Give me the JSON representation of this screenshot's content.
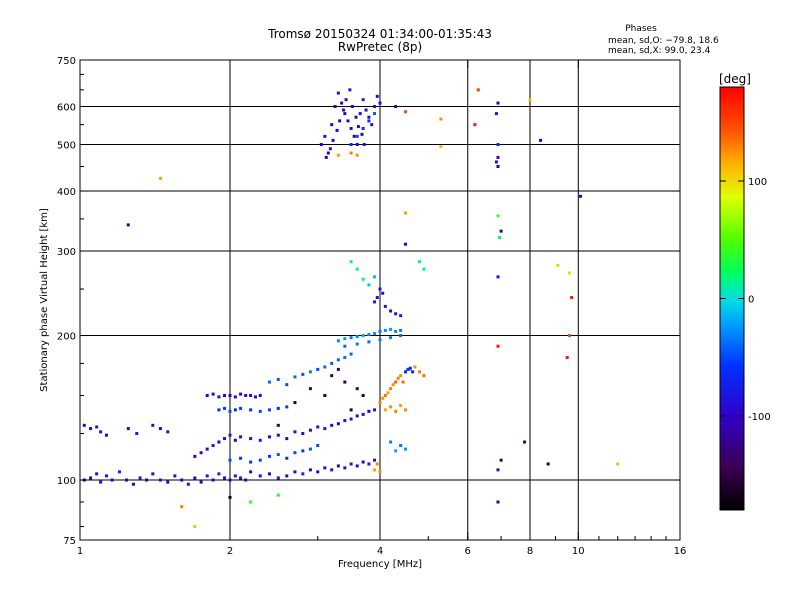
{
  "title_line1": "Tromsø 20150324 01:34:00-01:35:43",
  "title_line2": "RwPretec (8p)",
  "stats": {
    "heading": "Phases",
    "line_o": "mean, sd,O: −79.8, 18.6",
    "line_x": "mean, sd,X:  99.0, 23.4"
  },
  "colorbar": {
    "label": "[deg]",
    "ticks": [
      {
        "value": 100,
        "label": "100"
      },
      {
        "value": 0,
        "label": "0"
      },
      {
        "value": -100,
        "label": "-100"
      }
    ],
    "range": [
      -180,
      180
    ]
  },
  "chart_data": {
    "type": "scatter",
    "xlabel": "Frequency [MHz]",
    "ylabel": "Stationary phase Virtual Height [km]",
    "xscale": "log",
    "yscale": "log",
    "xlim": [
      1,
      16
    ],
    "ylim": [
      75,
      750
    ],
    "x_ticks": [
      {
        "value": 1,
        "label": "1"
      },
      {
        "value": 2,
        "label": "2"
      },
      {
        "value": 4,
        "label": "4"
      },
      {
        "value": 6,
        "label": "6"
      },
      {
        "value": 8,
        "label": "8"
      },
      {
        "value": 10,
        "label": "10"
      },
      {
        "value": 16,
        "label": "16"
      }
    ],
    "x_grid": [
      2,
      4,
      6,
      8,
      10
    ],
    "y_ticks": [
      {
        "value": 75,
        "label": "75"
      },
      {
        "value": 100,
        "label": "100"
      },
      {
        "value": 200,
        "label": "200"
      },
      {
        "value": 300,
        "label": "300"
      },
      {
        "value": 400,
        "label": "400"
      },
      {
        "value": 500,
        "label": "500"
      },
      {
        "value": 600,
        "label": "600"
      },
      {
        "value": 750,
        "label": "750"
      }
    ],
    "y_grid": [
      100,
      200,
      300,
      400,
      500,
      600
    ],
    "color_key": "phase_deg",
    "points": [
      [
        1.02,
        100,
        -95
      ],
      [
        1.05,
        101,
        -100
      ],
      [
        1.08,
        103,
        -90
      ],
      [
        1.1,
        99,
        -85
      ],
      [
        1.13,
        102,
        -75
      ],
      [
        1.16,
        100,
        -100
      ],
      [
        1.2,
        104,
        -70
      ],
      [
        1.24,
        100,
        -110
      ],
      [
        1.28,
        98,
        -95
      ],
      [
        1.32,
        101,
        -80
      ],
      [
        1.36,
        100,
        -100
      ],
      [
        1.4,
        103,
        -90
      ],
      [
        1.45,
        100,
        -85
      ],
      [
        1.5,
        99,
        -105
      ],
      [
        1.55,
        102,
        -95
      ],
      [
        1.6,
        100,
        -100
      ],
      [
        1.65,
        98,
        -80
      ],
      [
        1.7,
        101,
        -90
      ],
      [
        1.75,
        99,
        -100
      ],
      [
        1.8,
        102,
        -85
      ],
      [
        1.85,
        100,
        -95
      ],
      [
        1.9,
        103,
        -70
      ],
      [
        1.95,
        101,
        -90
      ],
      [
        2.0,
        100,
        -100
      ],
      [
        2.05,
        102,
        -85
      ],
      [
        2.1,
        101,
        -80
      ],
      [
        2.15,
        100,
        -95
      ],
      [
        2.2,
        104,
        -110
      ],
      [
        2.3,
        102,
        -90
      ],
      [
        2.4,
        103,
        -100
      ],
      [
        2.5,
        101,
        -85
      ],
      [
        2.6,
        102,
        -95
      ],
      [
        2.7,
        104,
        -90
      ],
      [
        2.8,
        103,
        -80
      ],
      [
        2.9,
        105,
        -100
      ],
      [
        3.0,
        104,
        -90
      ],
      [
        3.1,
        106,
        -85
      ],
      [
        3.2,
        105,
        -95
      ],
      [
        3.3,
        107,
        -100
      ],
      [
        3.4,
        106,
        -90
      ],
      [
        3.5,
        108,
        -80
      ],
      [
        3.6,
        107,
        -95
      ],
      [
        3.7,
        109,
        -100
      ],
      [
        3.8,
        108,
        -90
      ],
      [
        3.9,
        110,
        -85
      ],
      [
        1.02,
        130,
        -95
      ],
      [
        1.05,
        128,
        -100
      ],
      [
        1.08,
        129,
        -85
      ],
      [
        1.1,
        126,
        -90
      ],
      [
        1.13,
        124,
        -100
      ],
      [
        1.25,
        128,
        -95
      ],
      [
        1.3,
        125,
        -80
      ],
      [
        1.4,
        130,
        -90
      ],
      [
        1.45,
        128,
        -100
      ],
      [
        1.5,
        126,
        -85
      ],
      [
        1.7,
        112,
        -95
      ],
      [
        1.75,
        114,
        -90
      ],
      [
        1.8,
        116,
        -100
      ],
      [
        1.85,
        118,
        -85
      ],
      [
        1.9,
        120,
        -95
      ],
      [
        1.95,
        122,
        -90
      ],
      [
        2.0,
        124,
        -80
      ],
      [
        2.05,
        121,
        -100
      ],
      [
        2.1,
        123,
        -95
      ],
      [
        2.2,
        122,
        -90
      ],
      [
        2.3,
        121,
        -85
      ],
      [
        2.4,
        123,
        -100
      ],
      [
        2.5,
        124,
        -95
      ],
      [
        2.6,
        122,
        -90
      ],
      [
        2.7,
        126,
        -85
      ],
      [
        2.8,
        125,
        -100
      ],
      [
        2.9,
        127,
        -95
      ],
      [
        3.0,
        129,
        -90
      ],
      [
        3.1,
        128,
        -80
      ],
      [
        3.2,
        130,
        -95
      ],
      [
        3.3,
        131,
        -100
      ],
      [
        3.4,
        133,
        -90
      ],
      [
        3.5,
        134,
        -85
      ],
      [
        3.6,
        136,
        -95
      ],
      [
        3.7,
        137,
        -90
      ],
      [
        3.8,
        139,
        -100
      ],
      [
        3.9,
        140,
        -85
      ],
      [
        1.8,
        150,
        -100
      ],
      [
        1.85,
        151,
        -95
      ],
      [
        1.9,
        149,
        -90
      ],
      [
        1.95,
        150,
        -105
      ],
      [
        2.0,
        150,
        -100
      ],
      [
        2.05,
        149,
        -95
      ],
      [
        2.1,
        151,
        -90
      ],
      [
        2.15,
        150,
        -85
      ],
      [
        2.2,
        150,
        -100
      ],
      [
        2.25,
        149,
        -95
      ],
      [
        2.3,
        150,
        -90
      ],
      [
        1.9,
        140,
        -60
      ],
      [
        1.95,
        141,
        -55
      ],
      [
        2.0,
        139,
        -50
      ],
      [
        2.05,
        140,
        -65
      ],
      [
        2.1,
        141,
        -55
      ],
      [
        2.2,
        140,
        -60
      ],
      [
        2.3,
        139,
        -50
      ],
      [
        2.4,
        140,
        -55
      ],
      [
        2.5,
        141,
        -65
      ],
      [
        2.6,
        142,
        -55
      ],
      [
        2.0,
        110,
        -50
      ],
      [
        2.1,
        111,
        -55
      ],
      [
        2.2,
        109,
        -60
      ],
      [
        2.3,
        110,
        -50
      ],
      [
        2.4,
        112,
        -55
      ],
      [
        2.5,
        113,
        -45
      ],
      [
        2.6,
        111,
        -60
      ],
      [
        2.7,
        114,
        -50
      ],
      [
        2.8,
        115,
        -55
      ],
      [
        2.9,
        116,
        -45
      ],
      [
        3.0,
        118,
        -50
      ],
      [
        2.4,
        160,
        -40
      ],
      [
        2.5,
        162,
        -45
      ],
      [
        2.6,
        158,
        -50
      ],
      [
        2.7,
        164,
        -40
      ],
      [
        2.8,
        166,
        -45
      ],
      [
        2.9,
        168,
        -35
      ],
      [
        3.0,
        170,
        -50
      ],
      [
        3.1,
        172,
        -40
      ],
      [
        3.2,
        175,
        -45
      ],
      [
        3.3,
        178,
        -40
      ],
      [
        3.4,
        180,
        -35
      ],
      [
        3.5,
        183,
        -40
      ],
      [
        2.5,
        130,
        -150
      ],
      [
        2.7,
        145,
        -160
      ],
      [
        2.9,
        155,
        -140
      ],
      [
        3.1,
        150,
        -155
      ],
      [
        3.2,
        165,
        -150
      ],
      [
        3.3,
        170,
        -145
      ],
      [
        3.4,
        160,
        -150
      ],
      [
        3.5,
        140,
        -160
      ],
      [
        3.6,
        155,
        -145
      ],
      [
        3.7,
        150,
        -155
      ],
      [
        3.3,
        195,
        -30
      ],
      [
        3.4,
        197,
        -25
      ],
      [
        3.5,
        198,
        -35
      ],
      [
        3.6,
        199,
        -30
      ],
      [
        3.7,
        200,
        -20
      ],
      [
        3.8,
        201,
        -30
      ],
      [
        3.9,
        202,
        -25
      ],
      [
        4.0,
        204,
        -35
      ],
      [
        4.1,
        205,
        -30
      ],
      [
        4.2,
        206,
        -25
      ],
      [
        4.3,
        204,
        -30
      ],
      [
        4.4,
        205,
        -35
      ],
      [
        3.4,
        190,
        -40
      ],
      [
        3.6,
        192,
        -35
      ],
      [
        3.8,
        194,
        -40
      ],
      [
        4.0,
        196,
        -35
      ],
      [
        4.2,
        198,
        -30
      ],
      [
        4.4,
        200,
        -40
      ],
      [
        4.0,
        145,
        130
      ],
      [
        4.05,
        148,
        125
      ],
      [
        4.1,
        150,
        135
      ],
      [
        4.15,
        152,
        120
      ],
      [
        4.2,
        155,
        130
      ],
      [
        4.25,
        158,
        125
      ],
      [
        4.3,
        160,
        140
      ],
      [
        4.35,
        163,
        130
      ],
      [
        4.4,
        165,
        125
      ],
      [
        4.45,
        160,
        135
      ],
      [
        4.5,
        168,
        130
      ],
      [
        4.6,
        170,
        120
      ],
      [
        4.7,
        172,
        125
      ],
      [
        4.8,
        168,
        130
      ],
      [
        4.9,
        165,
        135
      ],
      [
        4.1,
        140,
        120
      ],
      [
        4.2,
        142,
        125
      ],
      [
        4.3,
        139,
        130
      ],
      [
        4.4,
        143,
        120
      ],
      [
        4.5,
        140,
        125
      ],
      [
        3.9,
        105,
        120
      ],
      [
        4.0,
        104,
        125
      ],
      [
        3.95,
        108,
        130
      ],
      [
        3.9,
        235,
        -80
      ],
      [
        3.95,
        240,
        -90
      ],
      [
        4.0,
        250,
        -85
      ],
      [
        4.05,
        245,
        -95
      ],
      [
        4.1,
        230,
        -80
      ],
      [
        4.2,
        225,
        -90
      ],
      [
        4.3,
        222,
        -85
      ],
      [
        4.4,
        220,
        -80
      ],
      [
        3.5,
        285,
        10
      ],
      [
        3.6,
        275,
        15
      ],
      [
        3.7,
        262,
        20
      ],
      [
        3.8,
        255,
        -10
      ],
      [
        3.9,
        265,
        -15
      ],
      [
        4.5,
        168,
        -60
      ],
      [
        4.55,
        170,
        -55
      ],
      [
        4.6,
        171,
        -65
      ],
      [
        4.65,
        168,
        -60
      ],
      [
        4.2,
        120,
        -30
      ],
      [
        4.3,
        115,
        -20
      ],
      [
        4.4,
        118,
        -35
      ],
      [
        4.5,
        116,
        -25
      ],
      [
        3.05,
        500,
        -100
      ],
      [
        3.1,
        520,
        -90
      ],
      [
        3.15,
        480,
        -95
      ],
      [
        3.2,
        550,
        -105
      ],
      [
        3.25,
        600,
        -100
      ],
      [
        3.3,
        640,
        -90
      ],
      [
        3.35,
        610,
        -95
      ],
      [
        3.4,
        580,
        -100
      ],
      [
        3.45,
        560,
        -105
      ],
      [
        3.5,
        540,
        -90
      ],
      [
        3.55,
        520,
        -95
      ],
      [
        3.6,
        500,
        -100
      ],
      [
        3.65,
        580,
        -90
      ],
      [
        3.7,
        620,
        -85
      ],
      [
        3.75,
        590,
        -95
      ],
      [
        3.8,
        570,
        -100
      ],
      [
        3.85,
        550,
        -90
      ],
      [
        3.9,
        600,
        -95
      ],
      [
        3.95,
        630,
        -100
      ],
      [
        4.0,
        610,
        -90
      ],
      [
        3.12,
        470,
        -110
      ],
      [
        3.18,
        490,
        -90
      ],
      [
        3.22,
        510,
        -95
      ],
      [
        3.28,
        535,
        -100
      ],
      [
        3.32,
        560,
        -105
      ],
      [
        3.38,
        590,
        -90
      ],
      [
        3.42,
        620,
        -95
      ],
      [
        3.48,
        650,
        -85
      ],
      [
        3.52,
        600,
        -100
      ],
      [
        3.58,
        570,
        -110
      ],
      [
        3.62,
        545,
        -95
      ],
      [
        3.68,
        525,
        -100
      ],
      [
        3.72,
        500,
        -90
      ],
      [
        3.3,
        475,
        120
      ],
      [
        3.5,
        480,
        130
      ],
      [
        3.6,
        475,
        125
      ],
      [
        3.5,
        500,
        -60
      ],
      [
        3.6,
        520,
        -50
      ],
      [
        3.7,
        540,
        -55
      ],
      [
        3.8,
        560,
        -60
      ],
      [
        3.9,
        580,
        -45
      ],
      [
        1.25,
        340,
        -120
      ],
      [
        1.45,
        425,
        120
      ],
      [
        1.7,
        80,
        110
      ],
      [
        1.6,
        88,
        130
      ],
      [
        2.0,
        92,
        -170
      ],
      [
        2.2,
        90,
        40
      ],
      [
        2.5,
        93,
        30
      ],
      [
        4.5,
        310,
        -100
      ],
      [
        4.5,
        360,
        120
      ],
      [
        4.8,
        285,
        20
      ],
      [
        4.9,
        275,
        10
      ],
      [
        4.5,
        585,
        150
      ],
      [
        5.3,
        565,
        125
      ],
      [
        5.3,
        495,
        110
      ],
      [
        4.3,
        600,
        -100
      ],
      [
        6.3,
        650,
        150
      ],
      [
        6.2,
        550,
        170
      ],
      [
        6.9,
        610,
        -110
      ],
      [
        6.85,
        580,
        -80
      ],
      [
        6.9,
        500,
        -60
      ],
      [
        6.9,
        470,
        -100
      ],
      [
        6.85,
        460,
        -90
      ],
      [
        6.9,
        450,
        -110
      ],
      [
        7.0,
        330,
        -120
      ],
      [
        6.9,
        355,
        40
      ],
      [
        6.95,
        320,
        20
      ],
      [
        6.9,
        265,
        -80
      ],
      [
        6.9,
        190,
        170
      ],
      [
        7.0,
        110,
        -150
      ],
      [
        6.9,
        105,
        -100
      ],
      [
        6.9,
        90,
        -120
      ],
      [
        7.8,
        120,
        -120
      ],
      [
        8.4,
        510,
        -100
      ],
      [
        8.7,
        108,
        -160
      ],
      [
        9.1,
        280,
        100
      ],
      [
        9.6,
        270,
        100
      ],
      [
        9.7,
        240,
        170
      ],
      [
        9.6,
        200,
        150
      ],
      [
        9.5,
        180,
        170
      ],
      [
        10.1,
        390,
        -110
      ],
      [
        12.0,
        108,
        110
      ],
      [
        8.0,
        620,
        110
      ]
    ]
  }
}
